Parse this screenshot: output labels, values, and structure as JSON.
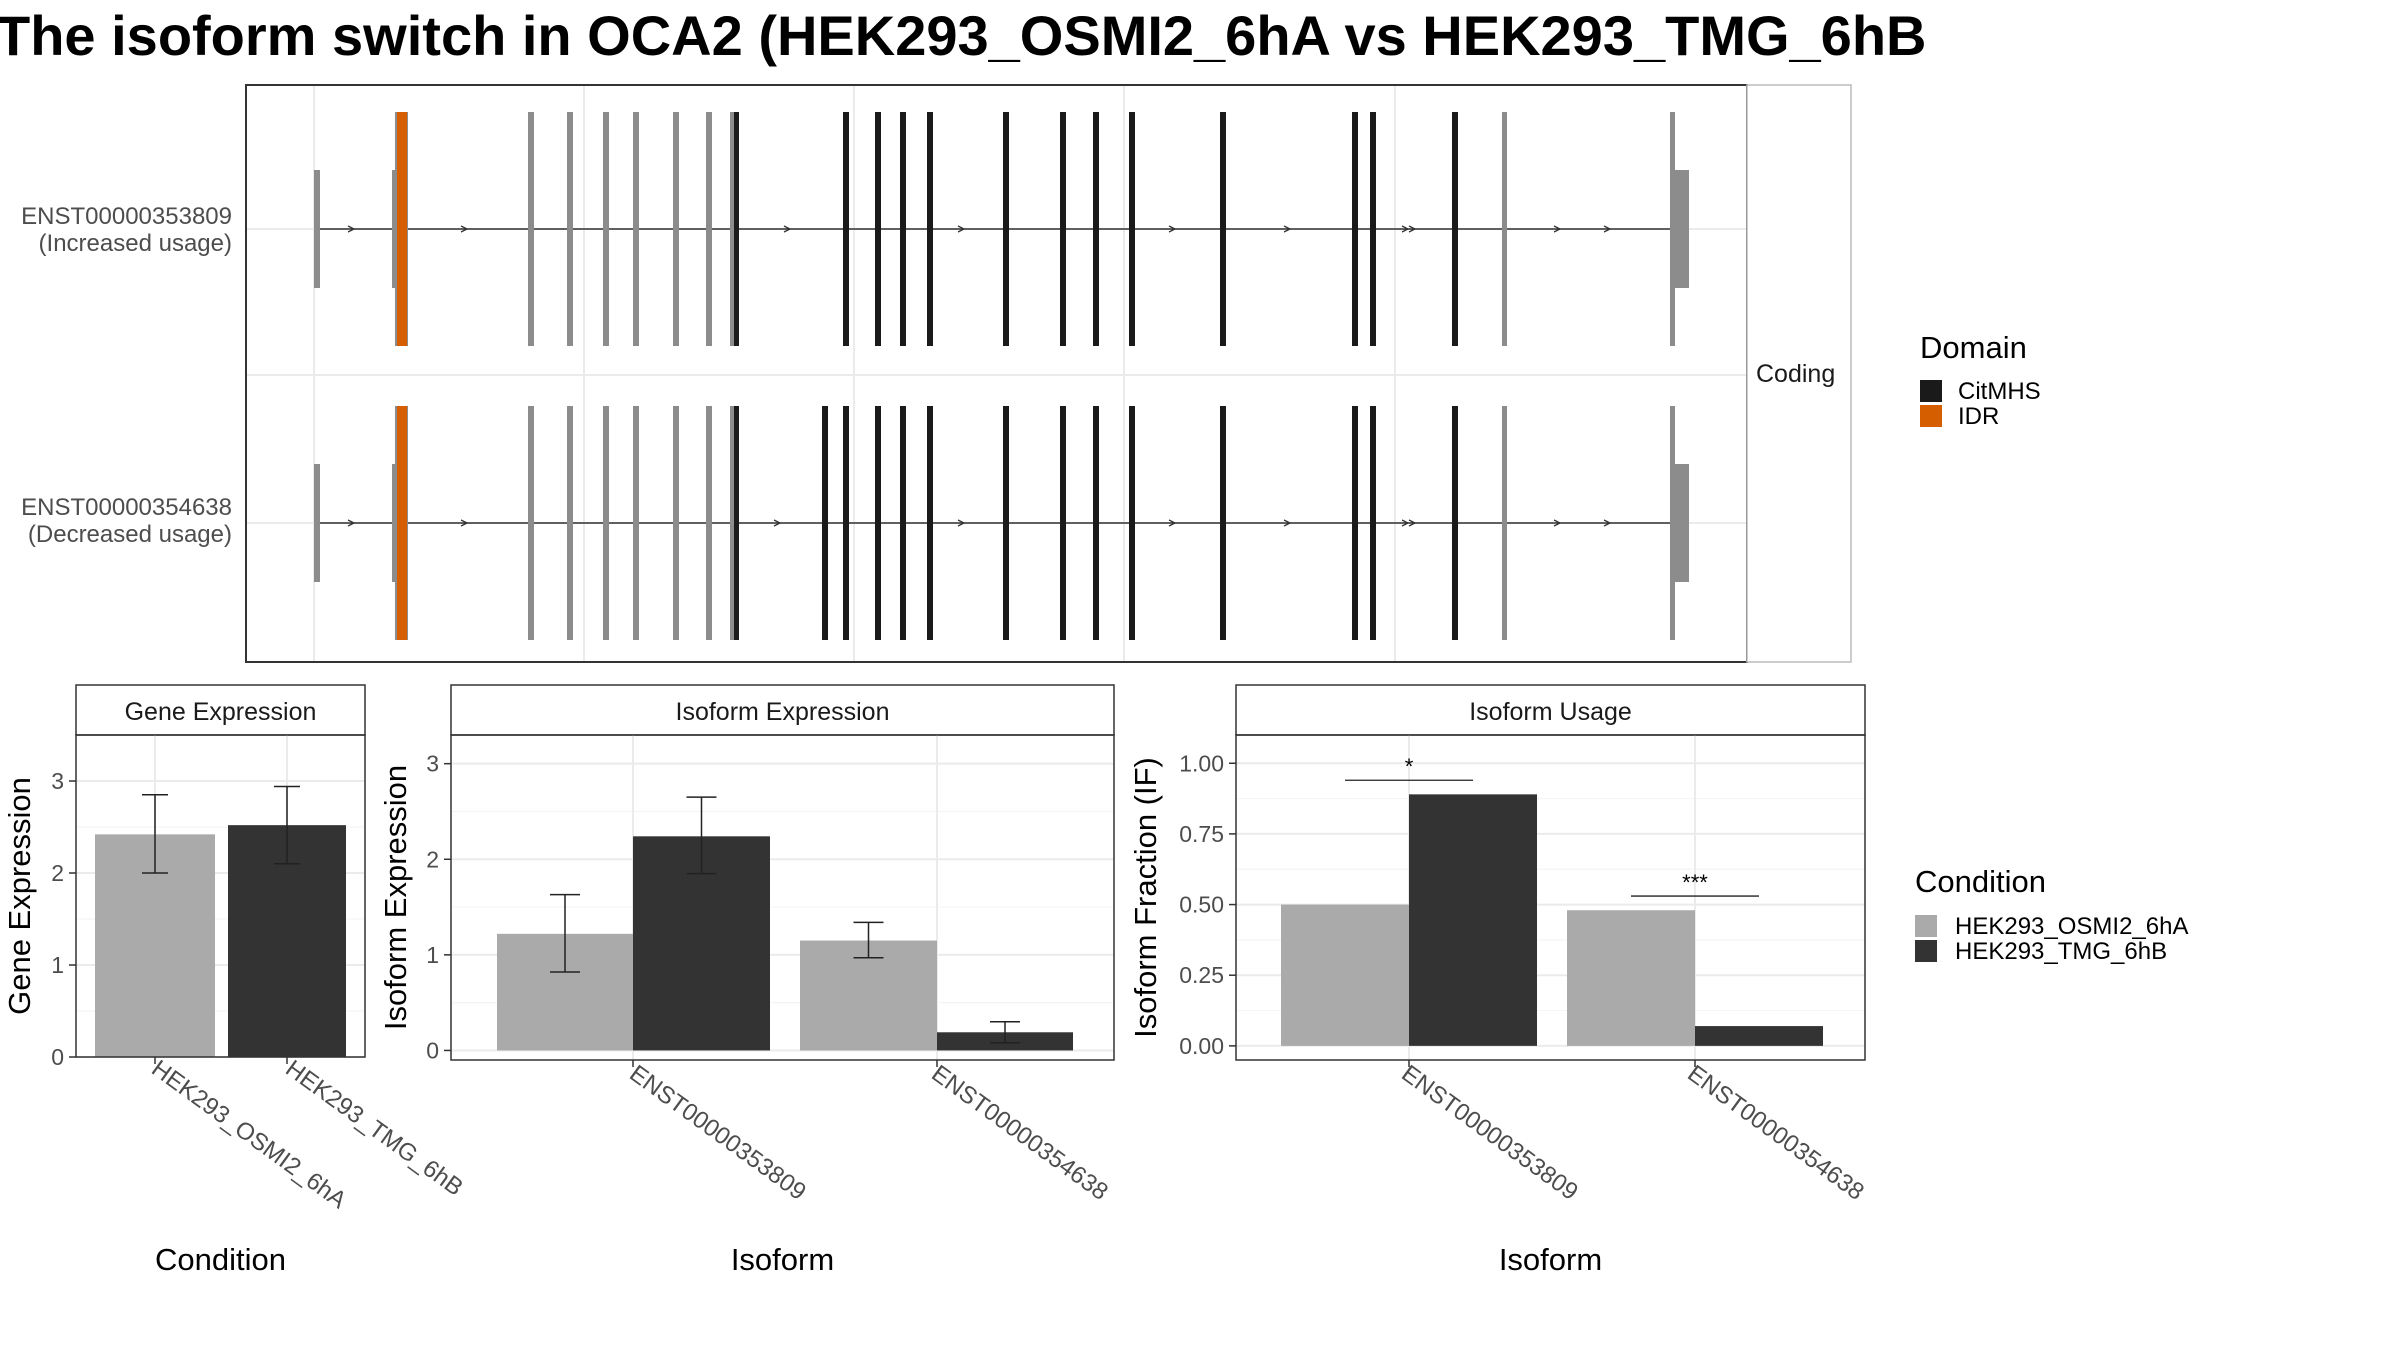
{
  "title": "The isoform switch in OCA2 (HEK293_OSMI2_6hA vs HEK293_TMG_6hB",
  "structure": {
    "facet_label": "Coding",
    "transcripts": [
      {
        "id": "ENST00000353809",
        "usage": "(Increased usage)"
      },
      {
        "id": "ENST00000354638",
        "usage": "(Decreased usage)"
      }
    ],
    "domain_legend": {
      "title": "Domain",
      "items": [
        {
          "label": "CitMHS",
          "color": "#1a1a1a"
        },
        {
          "label": "IDR",
          "color": "#d55e00"
        }
      ]
    }
  },
  "condition_legend": {
    "title": "Condition",
    "items": [
      {
        "label": "HEK293_OSMI2_6hA",
        "color": "#aaaaaa"
      },
      {
        "label": "HEK293_TMG_6hB",
        "color": "#333333"
      }
    ]
  },
  "chart_data": [
    {
      "type": "bar",
      "title": "Gene Expression",
      "xlabel": "Condition",
      "ylabel": "Gene Expression",
      "categories": [
        "HEK293_OSMI2_6hA",
        "HEK293_TMG_6hB"
      ],
      "values": [
        2.42,
        2.52
      ],
      "error_low": [
        2.0,
        2.1
      ],
      "error_high": [
        2.85,
        2.94
      ],
      "ylim": [
        0,
        3.5
      ],
      "yticks": [
        0,
        1,
        2,
        3
      ]
    },
    {
      "type": "bar",
      "title": "Isoform Expression",
      "xlabel": "Isoform",
      "ylabel": "Isoform Expression",
      "categories": [
        "ENST00000353809",
        "ENST00000354638"
      ],
      "series": [
        {
          "name": "HEK293_OSMI2_6hA",
          "values": [
            1.22,
            1.15
          ],
          "error_low": [
            0.82,
            0.97
          ],
          "error_high": [
            1.63,
            1.34
          ]
        },
        {
          "name": "HEK293_TMG_6hB",
          "values": [
            2.24,
            0.19
          ],
          "error_low": [
            1.85,
            0.08
          ],
          "error_high": [
            2.65,
            0.3
          ]
        }
      ],
      "ylim": [
        -0.1,
        3.3
      ],
      "yticks": [
        0,
        1,
        2,
        3
      ]
    },
    {
      "type": "bar",
      "title": "Isoform Usage",
      "xlabel": "Isoform",
      "ylabel": "Isoform Fraction (IF)",
      "categories": [
        "ENST00000353809",
        "ENST00000354638"
      ],
      "series": [
        {
          "name": "HEK293_OSMI2_6hA",
          "values": [
            0.5,
            0.48
          ]
        },
        {
          "name": "HEK293_TMG_6hB",
          "values": [
            0.89,
            0.07
          ]
        }
      ],
      "significance": [
        "*",
        "***"
      ],
      "significance_y": [
        0.94,
        0.53
      ],
      "ylim": [
        -0.05,
        1.1
      ],
      "yticks": [
        0.0,
        0.25,
        0.5,
        0.75,
        1.0
      ],
      "ytick_labels": [
        "0.00",
        "0.25",
        "0.50",
        "0.75",
        "1.00"
      ]
    }
  ]
}
